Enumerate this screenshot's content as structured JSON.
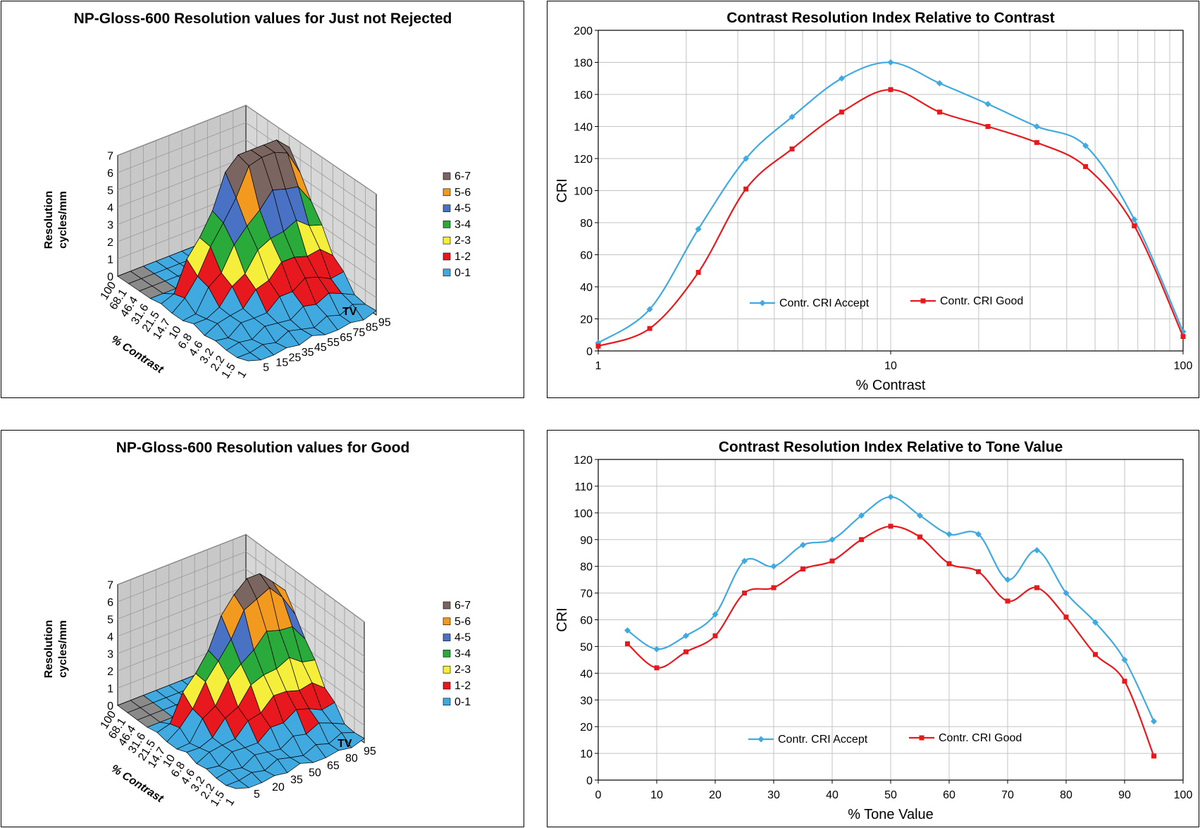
{
  "chart_data": [
    {
      "type": "surface3d",
      "title": "NP-Gloss-600 Resolution values for Just not Rejected",
      "zlabel": [
        "Resolution",
        "cycles/mm"
      ],
      "xlabel": "% Contrast",
      "ylabel": "TV",
      "z_ticks": [
        "0",
        "1",
        "2",
        "3",
        "4",
        "5",
        "6",
        "7"
      ],
      "x_ticks": [
        "100",
        "68.1",
        "46.4",
        "31.6",
        "21.5",
        "14.7",
        "10",
        "6.8",
        "4.6",
        "3.2",
        "2.2",
        "1.5",
        "1"
      ],
      "y_ticks": [
        "5",
        "15",
        "25",
        "35",
        "45",
        "55",
        "65",
        "75",
        "85",
        "95"
      ],
      "legend": [
        {
          "label": "6-7",
          "color": "#7a6560"
        },
        {
          "label": "5-6",
          "color": "#f29a1f"
        },
        {
          "label": "4-5",
          "color": "#4a72c4"
        },
        {
          "label": "3-4",
          "color": "#2aaa3a"
        },
        {
          "label": "2-3",
          "color": "#f5ee3a"
        },
        {
          "label": "1-2",
          "color": "#e8191e"
        },
        {
          "label": "0-1",
          "color": "#3fa9e0"
        }
      ]
    },
    {
      "type": "line",
      "title": "Contrast Resolution Index Relative to Contrast",
      "xlabel": "% Contrast",
      "ylabel": "CRI",
      "xscale": "log",
      "xlim": [
        1,
        100
      ],
      "ylim": [
        0,
        200
      ],
      "x_ticks": [
        "1",
        "10",
        "100"
      ],
      "y_ticks": [
        "0",
        "20",
        "40",
        "60",
        "80",
        "100",
        "120",
        "140",
        "160",
        "180",
        "200"
      ],
      "x": [
        1,
        1.5,
        2.2,
        3.2,
        4.6,
        6.8,
        10,
        14.7,
        21.5,
        31.6,
        46.4,
        68.1,
        100
      ],
      "series": [
        {
          "name": "Contr. CRI Accept",
          "color": "#3fa9e0",
          "marker": "diamond",
          "values": [
            5,
            26,
            76,
            120,
            146,
            170,
            180,
            167,
            154,
            140,
            128,
            82,
            12
          ]
        },
        {
          "name": "Contr. CRI Good",
          "color": "#e8191e",
          "marker": "square",
          "values": [
            3,
            14,
            49,
            101,
            126,
            149,
            163,
            149,
            140,
            130,
            115,
            78,
            9
          ]
        }
      ]
    },
    {
      "type": "surface3d",
      "title": "NP-Gloss-600 Resolution values for Good",
      "zlabel": [
        "Resolution",
        "cycles/mm"
      ],
      "xlabel": "% Contrast",
      "ylabel": "TV",
      "z_ticks": [
        "0",
        "1",
        "2",
        "3",
        "4",
        "5",
        "6",
        "7"
      ],
      "x_ticks": [
        "100",
        "68.1",
        "46.4",
        "31.6",
        "21.5",
        "14.7",
        "10",
        "6.8",
        "4.6",
        "3.2",
        "2.2",
        "1.5",
        "1"
      ],
      "y_ticks": [
        "5",
        "20",
        "35",
        "50",
        "65",
        "80",
        "95"
      ],
      "legend": [
        {
          "label": "6-7",
          "color": "#7a6560"
        },
        {
          "label": "5-6",
          "color": "#f29a1f"
        },
        {
          "label": "4-5",
          "color": "#4a72c4"
        },
        {
          "label": "3-4",
          "color": "#2aaa3a"
        },
        {
          "label": "2-3",
          "color": "#f5ee3a"
        },
        {
          "label": "1-2",
          "color": "#e8191e"
        },
        {
          "label": "0-1",
          "color": "#3fa9e0"
        }
      ]
    },
    {
      "type": "line",
      "title": "Contrast Resolution Index Relative to Tone Value",
      "xlabel": "% Tone Value",
      "ylabel": "CRI",
      "xlim": [
        0,
        100
      ],
      "ylim": [
        0,
        120
      ],
      "x_ticks": [
        "0",
        "10",
        "20",
        "30",
        "40",
        "50",
        "60",
        "70",
        "80",
        "90",
        "100"
      ],
      "y_ticks": [
        "0",
        "10",
        "20",
        "30",
        "40",
        "50",
        "60",
        "70",
        "80",
        "90",
        "100",
        "110",
        "120"
      ],
      "x": [
        5,
        10,
        15,
        20,
        25,
        30,
        35,
        40,
        45,
        50,
        55,
        60,
        65,
        70,
        75,
        80,
        85,
        90,
        95
      ],
      "series": [
        {
          "name": "Contr. CRI Accept",
          "color": "#3fa9e0",
          "marker": "diamond",
          "values": [
            56,
            49,
            54,
            62,
            82,
            80,
            88,
            90,
            99,
            106,
            99,
            92,
            92,
            75,
            86,
            70,
            59,
            45,
            22
          ]
        },
        {
          "name": "Contr. CRI Good",
          "color": "#e8191e",
          "marker": "square",
          "values": [
            51,
            42,
            48,
            54,
            70,
            72,
            79,
            82,
            90,
            95,
            91,
            81,
            78,
            67,
            72,
            61,
            47,
            37,
            9
          ]
        }
      ]
    }
  ]
}
